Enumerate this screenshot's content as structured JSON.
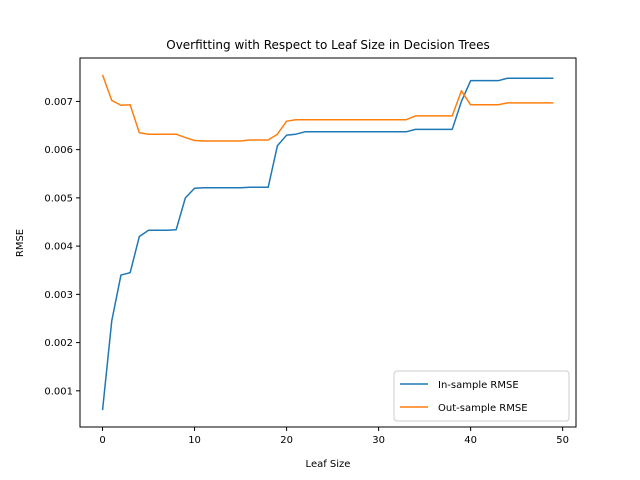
{
  "chart_data": {
    "type": "line",
    "title": "Overfitting with Respect to Leaf Size in Decision Trees",
    "xlabel": "Leaf Size",
    "ylabel": "RMSE",
    "xlim": [
      -2.45,
      51.45
    ],
    "ylim": [
      0.00025,
      0.0079
    ],
    "xticks": [
      0,
      10,
      20,
      30,
      40,
      50
    ],
    "yticks": [
      0.001,
      0.002,
      0.003,
      0.004,
      0.005,
      0.006,
      0.007
    ],
    "x": [
      0,
      1,
      2,
      3,
      4,
      5,
      6,
      7,
      8,
      9,
      10,
      11,
      12,
      13,
      14,
      15,
      16,
      17,
      18,
      19,
      20,
      21,
      22,
      23,
      24,
      25,
      26,
      27,
      28,
      29,
      30,
      31,
      32,
      33,
      34,
      35,
      36,
      37,
      38,
      39,
      40,
      41,
      42,
      43,
      44,
      45,
      46,
      47,
      48,
      49
    ],
    "series": [
      {
        "name": "In-sample RMSE",
        "color": "#1f77b4",
        "values": [
          0.0006,
          0.00245,
          0.0034,
          0.00345,
          0.0042,
          0.00433,
          0.00433,
          0.00433,
          0.00434,
          0.005,
          0.0052,
          0.00521,
          0.00521,
          0.00521,
          0.00521,
          0.00521,
          0.00522,
          0.00522,
          0.00522,
          0.00608,
          0.0063,
          0.00632,
          0.00637,
          0.00637,
          0.00637,
          0.00637,
          0.00637,
          0.00637,
          0.00637,
          0.00637,
          0.00637,
          0.00637,
          0.00637,
          0.00637,
          0.00642,
          0.00642,
          0.00642,
          0.00642,
          0.00642,
          0.007,
          0.00743,
          0.00743,
          0.00743,
          0.00743,
          0.00748,
          0.00748,
          0.00748,
          0.00748,
          0.00748,
          0.00748
        ]
      },
      {
        "name": "Out-sample RMSE",
        "color": "#ff7f0e",
        "values": [
          0.00755,
          0.00702,
          0.00692,
          0.00693,
          0.00635,
          0.00632,
          0.00632,
          0.00632,
          0.00632,
          0.00625,
          0.00619,
          0.00618,
          0.00618,
          0.00618,
          0.00618,
          0.00618,
          0.0062,
          0.0062,
          0.0062,
          0.00632,
          0.00659,
          0.00662,
          0.00662,
          0.00662,
          0.00662,
          0.00662,
          0.00662,
          0.00662,
          0.00662,
          0.00662,
          0.00662,
          0.00662,
          0.00662,
          0.00662,
          0.0067,
          0.0067,
          0.0067,
          0.0067,
          0.0067,
          0.00722,
          0.00693,
          0.00693,
          0.00693,
          0.00693,
          0.00697,
          0.00697,
          0.00697,
          0.00697,
          0.00697,
          0.00697
        ]
      }
    ],
    "legend_position": "lower-right",
    "grid": false
  }
}
